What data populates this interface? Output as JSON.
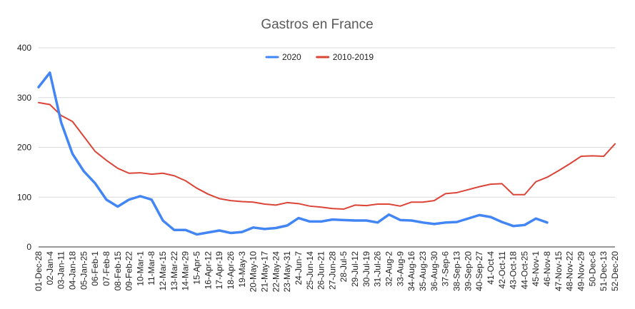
{
  "chart_data": {
    "type": "line",
    "title": "Gastros en France",
    "xlabel": "",
    "ylabel": "",
    "ylim": [
      0,
      400
    ],
    "yticks": [
      0,
      100,
      200,
      300,
      400
    ],
    "grid": true,
    "legend_position": "top-center",
    "categories": [
      "01-Dec-28",
      "02-Jan-4",
      "03-Jan-11",
      "04-Jan-18",
      "05-Jan-25",
      "06-Feb-1",
      "07-Feb-8",
      "08-Feb-15",
      "09-Feb-22",
      "10-Mar-1",
      "11-Mar-8",
      "12-Mar-15",
      "13-Mar-22",
      "14-Mar-29",
      "15-Apr-5",
      "16-Apr-12",
      "17-Apr-19",
      "18-Apr-26",
      "19-May-3",
      "20-May-10",
      "21-May-17",
      "22-May-24",
      "23-May-31",
      "24-Jun-7",
      "25-Jun-14",
      "26-Jun-21",
      "27-Jun-28",
      "28-Jul-5",
      "29-Jul-12",
      "30-Jul-19",
      "31-Jul-26",
      "32-Aug-2",
      "33-Aug-9",
      "34-Aug-16",
      "35-Aug-23",
      "36-Aug-30",
      "37-Sep-6",
      "38-Sep-13",
      "39-Sep-20",
      "40-Sep-27",
      "41-Oct-4",
      "42-Oct-11",
      "43-Oct-18",
      "44-Oct-25",
      "45-Nov-1",
      "46-Nov-8",
      "47-Nov-15",
      "48-Nov-22",
      "49-Nov-29",
      "50-Dec-6",
      "51-Dec-13",
      "52-Dec-20"
    ],
    "series": [
      {
        "name": "2020",
        "color": "#4285f4",
        "values": [
          321,
          350,
          250,
          187,
          152,
          128,
          95,
          81,
          95,
          102,
          95,
          53,
          34,
          34,
          25,
          29,
          33,
          28,
          30,
          39,
          36,
          38,
          43,
          58,
          51,
          51,
          55,
          54,
          53,
          53,
          49,
          65,
          54,
          53,
          49,
          46,
          49,
          50,
          57,
          64,
          60,
          50,
          42,
          44,
          57,
          49,
          null,
          null,
          null,
          null,
          null,
          null
        ]
      },
      {
        "name": "2010-2019",
        "color": "#db4437",
        "values": [
          290,
          286,
          264,
          252,
          222,
          192,
          174,
          158,
          148,
          149,
          146,
          148,
          143,
          133,
          118,
          106,
          97,
          93,
          91,
          90,
          86,
          84,
          89,
          87,
          82,
          80,
          77,
          76,
          84,
          83,
          86,
          86,
          82,
          90,
          90,
          93,
          107,
          109,
          115,
          121,
          126,
          127,
          105,
          105,
          131,
          140,
          153,
          167,
          182,
          183,
          182,
          207
        ]
      }
    ]
  }
}
